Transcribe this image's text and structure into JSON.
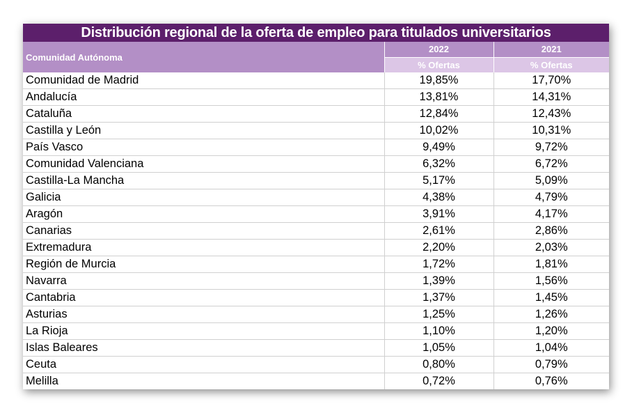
{
  "title": "Distribución regional de la oferta de empleo para titulados universitarios",
  "header": {
    "region_label": "Comunidad Autónoma",
    "years": [
      "2022",
      "2021"
    ],
    "sub_label": "% Ofertas"
  },
  "rows": [
    {
      "region": "Comunidad de Madrid",
      "y2022": "19,85%",
      "y2021": "17,70%"
    },
    {
      "region": "Andalucía",
      "y2022": "13,81%",
      "y2021": "14,31%"
    },
    {
      "region": "Cataluña",
      "y2022": "12,84%",
      "y2021": "12,43%"
    },
    {
      "region": "Castilla y León",
      "y2022": "10,02%",
      "y2021": "10,31%"
    },
    {
      "region": "País Vasco",
      "y2022": "9,49%",
      "y2021": "9,72%"
    },
    {
      "region": "Comunidad Valenciana",
      "y2022": "6,32%",
      "y2021": "6,72%"
    },
    {
      "region": "Castilla-La Mancha",
      "y2022": "5,17%",
      "y2021": "5,09%"
    },
    {
      "region": "Galicia",
      "y2022": "4,38%",
      "y2021": "4,79%"
    },
    {
      "region": "Aragón",
      "y2022": "3,91%",
      "y2021": "4,17%"
    },
    {
      "region": "Canarias",
      "y2022": "2,61%",
      "y2021": "2,86%"
    },
    {
      "region": "Extremadura",
      "y2022": "2,20%",
      "y2021": "2,03%"
    },
    {
      "region": "Región de Murcia",
      "y2022": "1,72%",
      "y2021": "1,81%"
    },
    {
      "region": "Navarra",
      "y2022": "1,39%",
      "y2021": "1,56%"
    },
    {
      "region": "Cantabria",
      "y2022": "1,37%",
      "y2021": "1,45%"
    },
    {
      "region": "Asturias",
      "y2022": "1,25%",
      "y2021": "1,26%"
    },
    {
      "region": "La Rioja",
      "y2022": "1,10%",
      "y2021": "1,20%"
    },
    {
      "region": "Islas Baleares",
      "y2022": "1,05%",
      "y2021": "1,04%"
    },
    {
      "region": "Ceuta",
      "y2022": "0,80%",
      "y2021": "0,79%"
    },
    {
      "region": "Melilla",
      "y2022": "0,72%",
      "y2021": "0,76%"
    }
  ],
  "colors": {
    "title_bg": "#5c1f6b",
    "header_bg": "#b38fc6",
    "subheader_bg": "#dcc6e6"
  }
}
